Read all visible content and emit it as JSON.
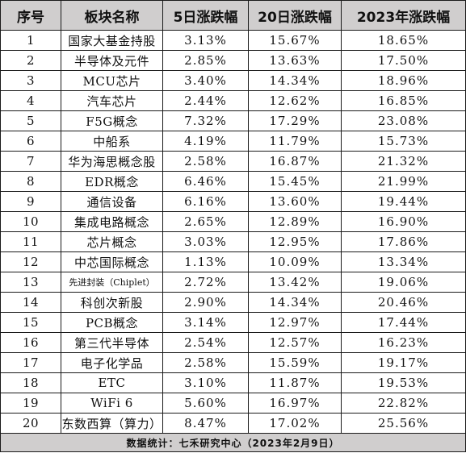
{
  "headers": [
    "序号",
    "板块名称",
    "5日涨跌幅",
    "20日涨跌幅",
    "2023年涨跌幅"
  ],
  "rows": [
    [
      "1",
      "国家大基金持股",
      "3.13%",
      "15.67%",
      "18.65%"
    ],
    [
      "2",
      "半导体及元件",
      "2.85%",
      "13.63%",
      "17.50%"
    ],
    [
      "3",
      "MCU芯片",
      "3.40%",
      "14.34%",
      "18.96%"
    ],
    [
      "4",
      "汽车芯片",
      "2.44%",
      "12.62%",
      "16.85%"
    ],
    [
      "5",
      "F5G概念",
      "7.32%",
      "17.29%",
      "23.08%"
    ],
    [
      "6",
      "中船系",
      "4.19%",
      "11.79%",
      "15.73%"
    ],
    [
      "7",
      "华为海思概念股",
      "2.58%",
      "16.87%",
      "21.32%"
    ],
    [
      "8",
      "EDR概念",
      "6.46%",
      "15.45%",
      "21.99%"
    ],
    [
      "9",
      "通信设备",
      "6.16%",
      "13.60%",
      "19.44%"
    ],
    [
      "10",
      "集成电路概念",
      "2.65%",
      "12.89%",
      "16.90%"
    ],
    [
      "11",
      "芯片概念",
      "3.03%",
      "12.95%",
      "17.86%"
    ],
    [
      "12",
      "中芯国际概念",
      "1.13%",
      "10.09%",
      "13.34%"
    ],
    [
      "13",
      "先进封装（Chiplet）",
      "2.72%",
      "13.42%",
      "19.06%"
    ],
    [
      "14",
      "科创次新股",
      "2.90%",
      "14.34%",
      "20.46%"
    ],
    [
      "15",
      "PCB概念",
      "3.14%",
      "12.97%",
      "17.44%"
    ],
    [
      "16",
      "第三代半导体",
      "2.54%",
      "12.57%",
      "16.23%"
    ],
    [
      "17",
      "电子化学品",
      "2.58%",
      "15.59%",
      "19.17%"
    ],
    [
      "18",
      "ETC",
      "3.10%",
      "11.87%",
      "19.53%"
    ],
    [
      "19",
      "WiFi 6",
      "5.60%",
      "16.97%",
      "22.82%"
    ],
    [
      "20",
      "东数西算（算力）",
      "8.47%",
      "17.02%",
      "25.56%"
    ]
  ],
  "footer": "数据统计：七禾研究中心（2023年2月9日）",
  "colors": {
    "header_bg": "#d0cece",
    "footer_bg": "#d0cece",
    "grid": "#1a1a1a"
  }
}
